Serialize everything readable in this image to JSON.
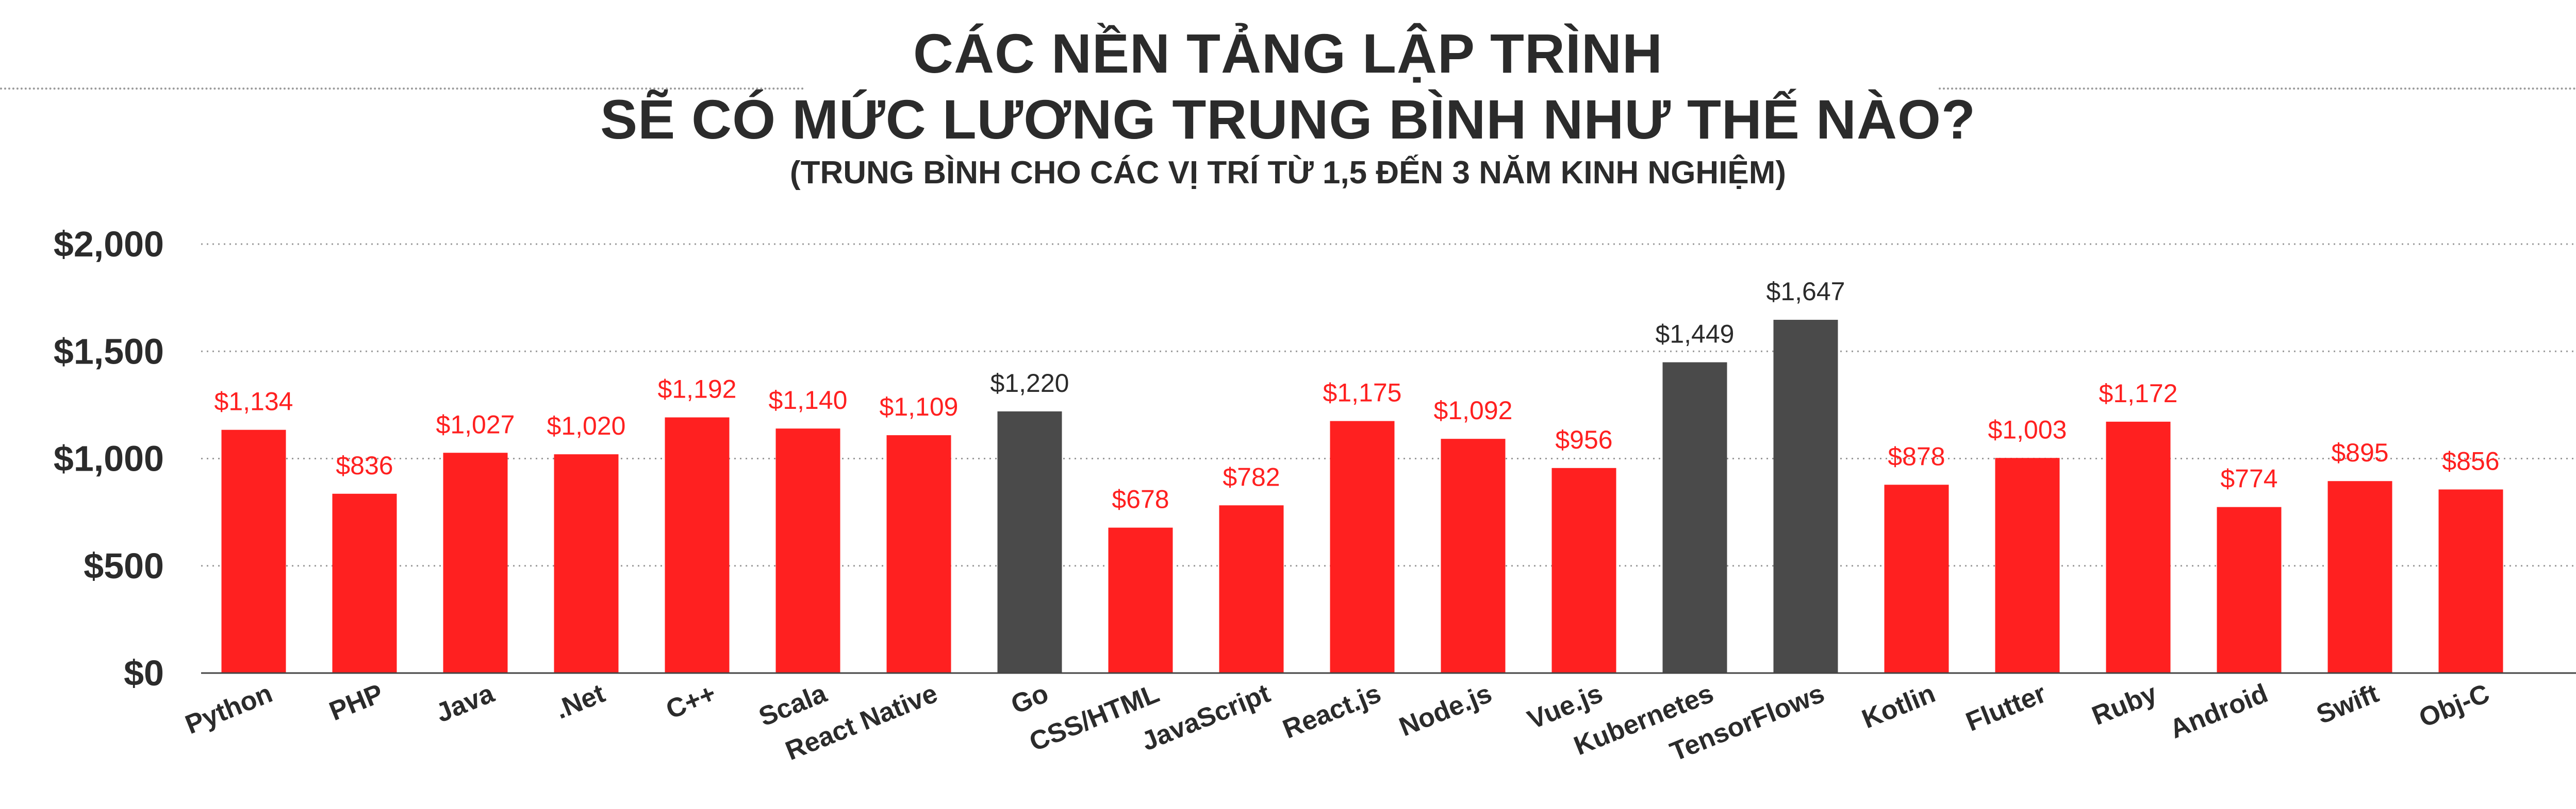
{
  "chart_data": {
    "type": "bar",
    "title_lines": [
      "CÁC NỀN TẢNG LẬP TRÌNH",
      "SẼ CÓ MỨC LƯƠNG TRUNG BÌNH NHƯ THẾ NÀO?"
    ],
    "subtitle": "(TRUNG BÌNH CHO CÁC VỊ TRÍ TỪ 1,5 ĐẾN 3 NĂM KINH NGHIỆM)",
    "categories": [
      "Python",
      "PHP",
      "Java",
      ".Net",
      "C++",
      "Scala",
      "React Native",
      "Go",
      "CSS/HTML",
      "JavaScript",
      "React.js",
      "Node.js",
      "Vue.js",
      "Kubernetes",
      "TensorFlows",
      "Kotlin",
      "Flutter",
      "Ruby",
      "Android",
      "Swift",
      "Obj-C"
    ],
    "values": [
      1134,
      836,
      1027,
      1020,
      1192,
      1140,
      1109,
      1220,
      678,
      782,
      1175,
      1092,
      956,
      1449,
      1647,
      878,
      1003,
      1172,
      774,
      895,
      856
    ],
    "value_labels": [
      "$1,134",
      "$836",
      "$1,027",
      "$1,020",
      "$1,192",
      "$1,140",
      "$1,109",
      "$1,220",
      "$678",
      "$782",
      "$1,175",
      "$1,092",
      "$956",
      "$1,449",
      "$1,647",
      "$878",
      "$1,003",
      "$1,172",
      "$774",
      "$895",
      "$856"
    ],
    "highlighted": [
      false,
      false,
      false,
      false,
      false,
      false,
      false,
      true,
      false,
      false,
      false,
      false,
      false,
      true,
      true,
      false,
      false,
      false,
      false,
      false,
      false
    ],
    "yticks": [
      0,
      500,
      1000,
      1500,
      2000
    ],
    "ytick_labels": [
      "$0",
      "$500",
      "$1,000",
      "$1,500",
      "$2,000"
    ],
    "ylim": [
      0,
      2000
    ],
    "grid": true,
    "colors": {
      "bar": "#ff2020",
      "bar_highlight": "#4a4a4a",
      "label": "#ff2020",
      "label_highlight": "#2b2b2b",
      "text": "#2b2b2b",
      "grid": "#9a9a9a"
    }
  }
}
